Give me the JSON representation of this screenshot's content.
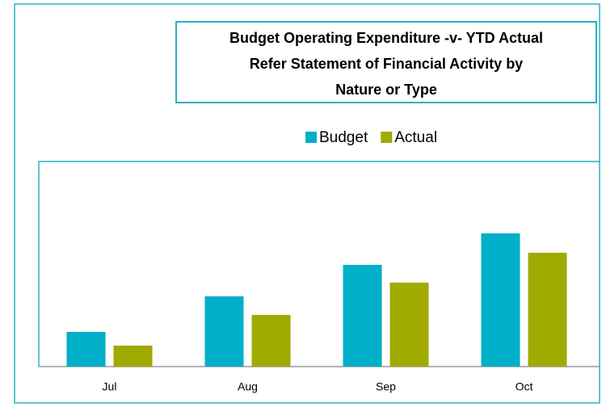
{
  "chart_data": {
    "type": "bar",
    "title_lines": [
      "Budget Operating Expenditure -v- YTD Actual",
      "Refer Statement of Financial Activity by",
      "Nature or Type"
    ],
    "categories": [
      "Jul",
      "Aug",
      "Sep",
      "Oct"
    ],
    "series": [
      {
        "name": "Budget",
        "color": "#00afc8",
        "values": [
          43,
          87,
          126,
          165
        ]
      },
      {
        "name": "Actual",
        "color": "#a0aa00",
        "values": [
          26,
          64,
          104,
          141
        ]
      }
    ],
    "ylim": [
      0,
      254
    ],
    "legend": "top"
  }
}
